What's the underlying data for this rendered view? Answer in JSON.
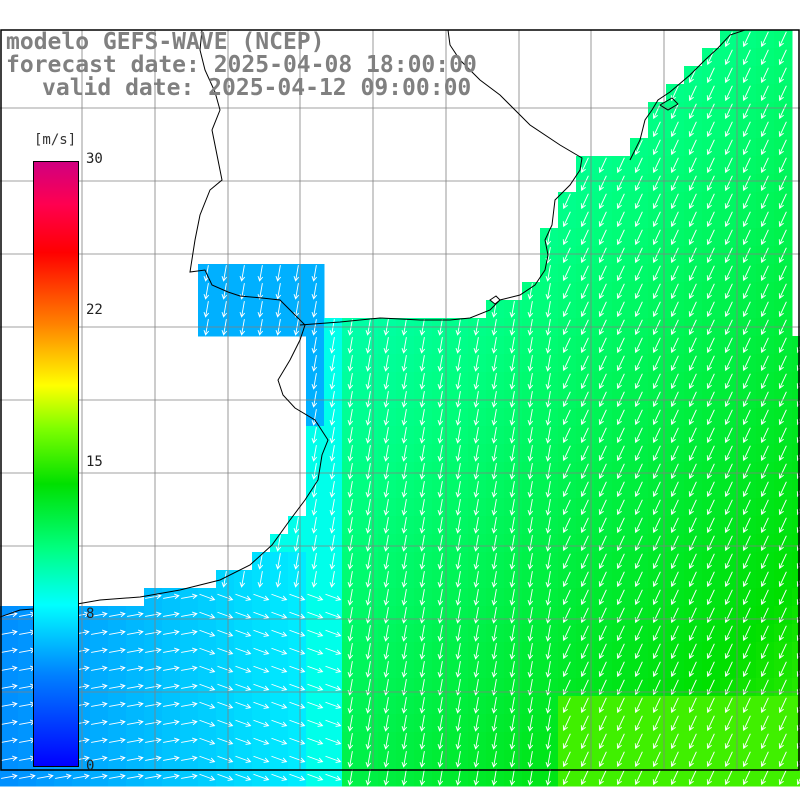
{
  "header": {
    "line1": "modelo GEFS-WAVE (NCEP)",
    "line2": "forecast date: 2025-04-08 18:00:00",
    "line3": "valid date: 2025-04-12 09:00:00"
  },
  "colorbar": {
    "unit": "[m/s]",
    "min": 0,
    "max": 30,
    "ticks": [
      {
        "value": 30,
        "label": "30"
      },
      {
        "value": 22,
        "label": "22"
      },
      {
        "value": 15,
        "label": "15"
      },
      {
        "value": 8,
        "label": "8"
      },
      {
        "value": 0,
        "label": "0"
      }
    ],
    "colors": [
      "#0000ff",
      "#0080ff",
      "#00ffff",
      "#00ff80",
      "#00e000",
      "#80ff00",
      "#ffff00",
      "#ff8000",
      "#ff0000",
      "#d00080"
    ]
  },
  "map": {
    "land_color": "#ffffff",
    "coast_color": "#000000",
    "grid_color": "#808080",
    "arrow_color": "#ffffff",
    "field": "wind speed and direction"
  }
}
